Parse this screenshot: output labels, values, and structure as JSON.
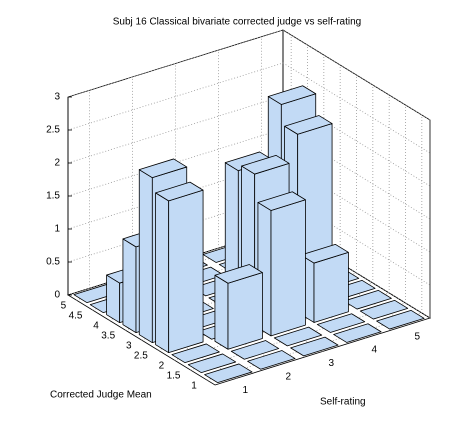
{
  "chart_data": {
    "type": "bar3d",
    "title": "Subj 16 Classical bivariate corrected judge vs self-rating",
    "xlabel": "Self-rating",
    "ylabel": "Corrected Judge Mean",
    "x": [
      1,
      2,
      3,
      4,
      5
    ],
    "y": [
      1,
      1.5,
      2,
      2.5,
      3,
      3.5,
      4,
      4.5,
      5
    ],
    "values": [
      [
        0,
        0,
        0,
        0,
        0
      ],
      [
        0,
        0,
        0,
        0,
        0
      ],
      [
        0,
        1.0,
        1.9,
        0.9,
        0
      ],
      [
        2.3,
        0,
        2.3,
        2.7,
        0
      ],
      [
        2.5,
        0,
        2.2,
        3.0,
        0
      ],
      [
        1.3,
        0,
        0,
        0,
        0
      ],
      [
        0.6,
        0,
        0,
        0,
        0
      ],
      [
        0,
        0,
        0,
        0,
        0
      ],
      [
        0,
        0,
        0,
        0,
        0
      ]
    ],
    "color": "#c2daf5",
    "xlim": [
      0.5,
      5.5
    ],
    "ylim": [
      0.75,
      5.25
    ],
    "zlim": [
      0,
      3
    ],
    "xticks": [
      1,
      2,
      3,
      4,
      5
    ],
    "yticks": [
      1,
      1.5,
      2,
      2.5,
      3,
      3.5,
      4,
      4.5,
      5
    ],
    "zticks": [
      0,
      0.5,
      1,
      1.5,
      2,
      2.5,
      3
    ],
    "grid": true
  }
}
